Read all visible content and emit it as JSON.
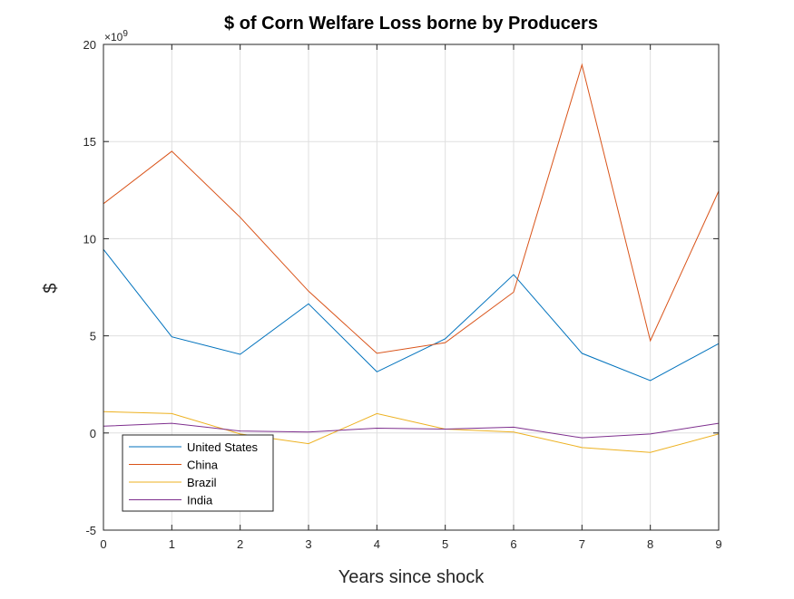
{
  "chart_data": {
    "type": "line",
    "title": "$  of Corn Welfare Loss borne by Producers",
    "xlabel": "Years since shock",
    "ylabel": "$",
    "y_exponent_label": "×10",
    "y_exponent_power": "9",
    "x": [
      0,
      1,
      2,
      3,
      4,
      5,
      6,
      7,
      8,
      9
    ],
    "xlim": [
      0,
      9
    ],
    "ylim": [
      -5,
      20
    ],
    "x_ticks": [
      0,
      1,
      2,
      3,
      4,
      5,
      6,
      7,
      8,
      9
    ],
    "y_ticks": [
      -5,
      0,
      5,
      10,
      15,
      20
    ],
    "grid": true,
    "legend_position": "bottom-left",
    "series": [
      {
        "name": "United States",
        "color": "#0072BD",
        "values": [
          9.45,
          4.95,
          4.05,
          6.65,
          3.15,
          4.85,
          8.15,
          4.1,
          2.7,
          4.6
        ]
      },
      {
        "name": "China",
        "color": "#D95319",
        "values": [
          11.8,
          14.5,
          11.1,
          7.3,
          4.1,
          4.65,
          7.25,
          18.95,
          4.75,
          12.45
        ]
      },
      {
        "name": "Brazil",
        "color": "#EDB120",
        "values": [
          1.1,
          1.0,
          -0.05,
          -0.55,
          1.0,
          0.2,
          0.05,
          -0.75,
          -1.0,
          -0.05
        ]
      },
      {
        "name": "India",
        "color": "#7E2F8E",
        "values": [
          0.35,
          0.5,
          0.1,
          0.05,
          0.25,
          0.2,
          0.3,
          -0.25,
          -0.05,
          0.5
        ]
      }
    ]
  }
}
